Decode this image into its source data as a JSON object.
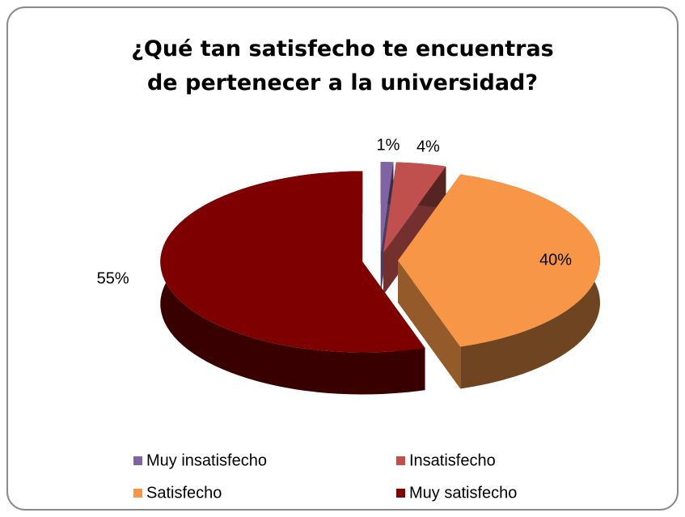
{
  "chart_data": {
    "type": "pie",
    "title": "¿Qué tan satisfecho te encuentras de pertenecer a la universidad?",
    "categories": [
      "Muy insatisfecho",
      "Insatisfecho",
      "Satisfecho",
      "Muy satisfecho"
    ],
    "values": [
      1,
      4,
      40,
      55
    ],
    "value_labels": [
      "1%",
      "4%",
      "40%",
      "55%"
    ],
    "colors": [
      "#8064a2",
      "#c0504d",
      "#f79646",
      "#7f0000"
    ],
    "legend": "bottom"
  }
}
